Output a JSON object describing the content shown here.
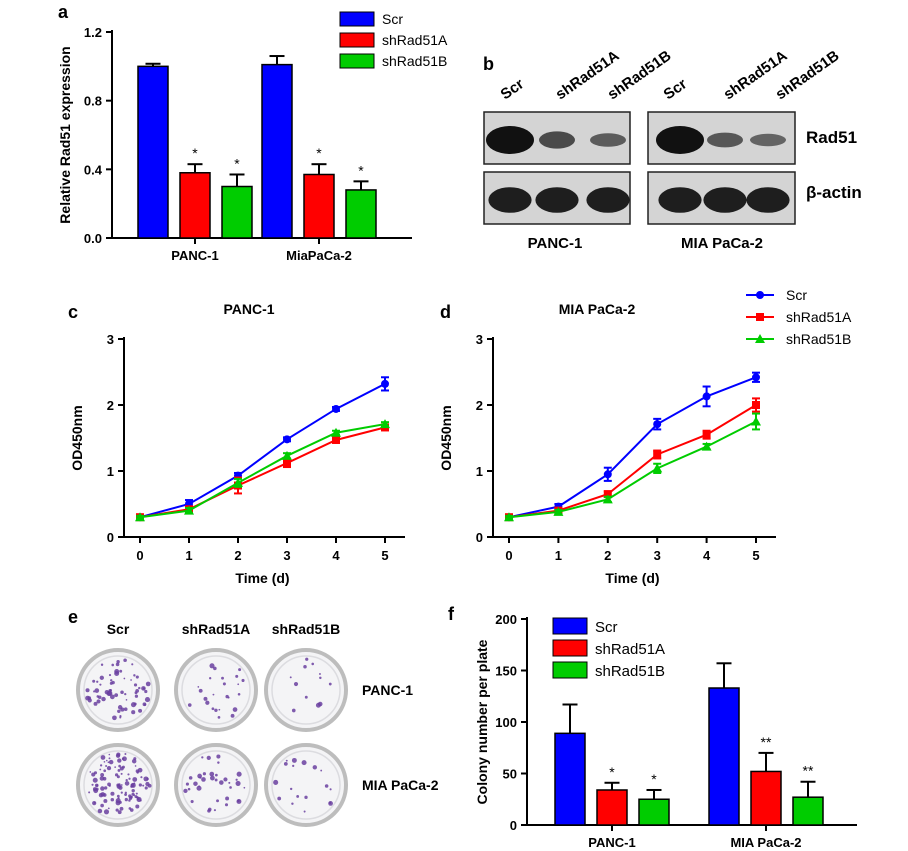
{
  "colors": {
    "scr": "#0000ff",
    "shRad51A": "#ff0000",
    "shRad51B": "#00cc00",
    "blot_bg": "#d4d4d4",
    "band": "#111111",
    "plate_rim": "#bdbdbd",
    "colony": "#6a3fa0"
  },
  "panel_letters": {
    "a": "a",
    "b": "b",
    "c": "c",
    "d": "d",
    "e": "e",
    "f": "f"
  },
  "legend_labels": [
    "Scr",
    "shRad51A",
    "shRad51B"
  ],
  "chart_data": [
    {
      "id": "a",
      "type": "bar",
      "ylabel": "Relative Rad51 expression",
      "ylim": [
        0,
        1.2
      ],
      "yticks": [
        "0.0",
        "0.4",
        "0.8",
        "1.2"
      ],
      "categories": [
        "PANC-1",
        "MiaPaCa-2"
      ],
      "series": [
        {
          "name": "Scr",
          "values": [
            1.0,
            1.01
          ],
          "errors": [
            0.015,
            0.05
          ]
        },
        {
          "name": "shRad51A",
          "values": [
            0.38,
            0.37
          ],
          "errors": [
            0.05,
            0.06
          ]
        },
        {
          "name": "shRad51B",
          "values": [
            0.3,
            0.28
          ],
          "errors": [
            0.07,
            0.05
          ]
        }
      ],
      "annotations": [
        [
          "",
          "*",
          "*"
        ],
        [
          "",
          "*",
          "*"
        ]
      ],
      "legend": "top-right"
    },
    {
      "id": "c",
      "type": "line",
      "title": "PANC-1",
      "xlabel": "Time (d)",
      "ylabel": "OD450nm",
      "x": [
        0,
        1,
        2,
        3,
        4,
        5
      ],
      "xticks": [
        "0",
        "1",
        "2",
        "3",
        "4",
        "5"
      ],
      "ylim": [
        0,
        3
      ],
      "yticks": [
        "0",
        "1",
        "2",
        "3"
      ],
      "series": [
        {
          "name": "Scr",
          "values": [
            0.3,
            0.5,
            0.93,
            1.48,
            1.94,
            2.32
          ],
          "errors": [
            0.02,
            0.06,
            0.04,
            0.03,
            0.03,
            0.1
          ]
        },
        {
          "name": "shRad51A",
          "values": [
            0.3,
            0.42,
            0.78,
            1.12,
            1.47,
            1.66
          ],
          "errors": [
            0.02,
            0.04,
            0.12,
            0.06,
            0.04,
            0.04
          ]
        },
        {
          "name": "shRad51B",
          "values": [
            0.3,
            0.4,
            0.82,
            1.23,
            1.58,
            1.71
          ],
          "errors": [
            0.02,
            0.04,
            0.06,
            0.04,
            0.03,
            0.03
          ]
        }
      ]
    },
    {
      "id": "d",
      "type": "line",
      "title": "MIA PaCa-2",
      "xlabel": "Time (d)",
      "ylabel": "OD450nm",
      "x": [
        0,
        1,
        2,
        3,
        4,
        5
      ],
      "xticks": [
        "0",
        "1",
        "2",
        "3",
        "4",
        "5"
      ],
      "ylim": [
        0,
        3
      ],
      "yticks": [
        "0",
        "1",
        "2",
        "3"
      ],
      "series": [
        {
          "name": "Scr",
          "values": [
            0.3,
            0.46,
            0.95,
            1.71,
            2.13,
            2.42
          ],
          "errors": [
            0.02,
            0.04,
            0.1,
            0.08,
            0.15,
            0.07
          ]
        },
        {
          "name": "shRad51A",
          "values": [
            0.3,
            0.4,
            0.65,
            1.25,
            1.55,
            2.0
          ],
          "errors": [
            0.02,
            0.03,
            0.04,
            0.06,
            0.06,
            0.1
          ]
        },
        {
          "name": "shRad51B",
          "values": [
            0.3,
            0.38,
            0.57,
            1.04,
            1.37,
            1.75
          ],
          "errors": [
            0.02,
            0.03,
            0.04,
            0.07,
            0.04,
            0.12
          ]
        }
      ],
      "legend": "top-right"
    },
    {
      "id": "f",
      "type": "bar",
      "ylabel": "Colony number per plate",
      "ylim": [
        0,
        200
      ],
      "yticks": [
        "0",
        "50",
        "100",
        "150",
        "200"
      ],
      "categories": [
        "PANC-1",
        "MIA PaCa-2"
      ],
      "series": [
        {
          "name": "Scr",
          "values": [
            89,
            133
          ],
          "errors": [
            28,
            24
          ]
        },
        {
          "name": "shRad51A",
          "values": [
            34,
            52
          ],
          "errors": [
            7,
            18
          ]
        },
        {
          "name": "shRad51B",
          "values": [
            25,
            27
          ],
          "errors": [
            9,
            15
          ]
        }
      ],
      "annotations": [
        [
          "",
          "*",
          "*"
        ],
        [
          "",
          "**",
          "**"
        ]
      ],
      "legend": "top-right"
    }
  ],
  "western_blot": {
    "lane_labels": [
      "Scr",
      "shRad51A",
      "shRad51B",
      "Scr",
      "shRad51A",
      "shRad51B"
    ],
    "row_labels": [
      "Rad51",
      "β-actin"
    ],
    "cell_lines": [
      "PANC-1",
      "MIA PaCa-2"
    ],
    "rad51_band_intensity": [
      [
        1.0,
        0.55,
        0.4
      ],
      [
        1.0,
        0.45,
        0.35
      ]
    ],
    "actin_band_intensity": [
      [
        0.9,
        0.9,
        0.9
      ],
      [
        0.9,
        0.9,
        0.9
      ]
    ]
  },
  "colony_plates": {
    "column_labels": [
      "Scr",
      "shRad51A",
      "shRad51B"
    ],
    "row_labels": [
      "PANC-1",
      "MIA PaCa-2"
    ],
    "colony_density": [
      [
        0.55,
        0.2,
        0.1
      ],
      [
        0.95,
        0.3,
        0.15
      ]
    ]
  }
}
